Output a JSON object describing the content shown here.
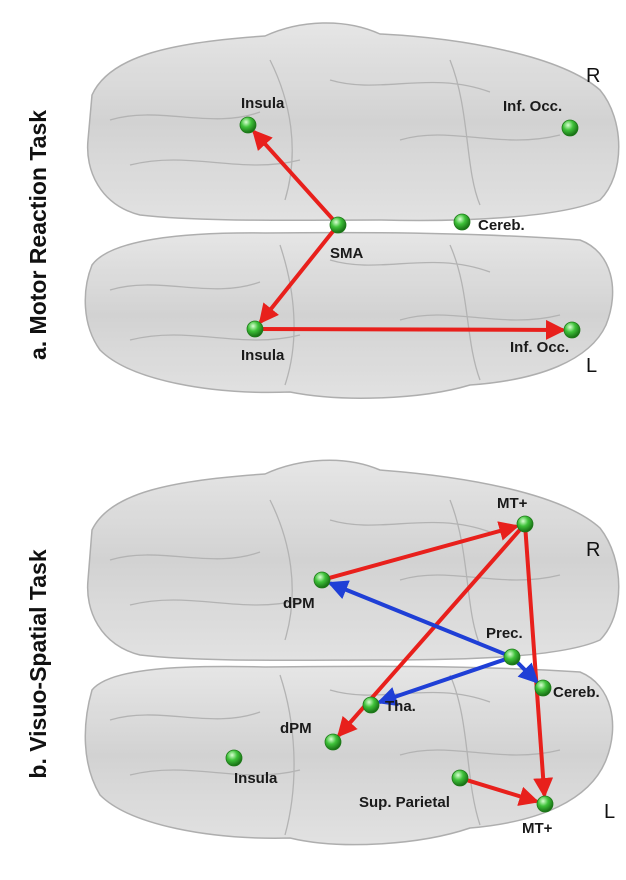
{
  "panels": [
    {
      "title": "a. Motor Reaction Task",
      "right_label": "R",
      "left_label": "L",
      "nodes": [
        {
          "id": "a_insula_r",
          "label": "Insula"
        },
        {
          "id": "a_infocc_r",
          "label": "Inf. Occ."
        },
        {
          "id": "a_sma",
          "label": "SMA"
        },
        {
          "id": "a_cereb",
          "label": "Cereb."
        },
        {
          "id": "a_insula_l",
          "label": "Insula"
        },
        {
          "id": "a_infocc_l",
          "label": "Inf. Occ."
        }
      ],
      "edges": [
        {
          "from": "a_sma",
          "to": "a_insula_r",
          "color": "#e8201c"
        },
        {
          "from": "a_sma",
          "to": "a_insula_l",
          "color": "#e8201c"
        },
        {
          "from": "a_insula_l",
          "to": "a_infocc_l",
          "color": "#e8201c"
        }
      ]
    },
    {
      "title": "b. Visuo-Spatial Task",
      "right_label": "R",
      "left_label": "L",
      "nodes": [
        {
          "id": "b_mt_r",
          "label": "MT+"
        },
        {
          "id": "b_dpm_r",
          "label": "dPM"
        },
        {
          "id": "b_prec",
          "label": "Prec."
        },
        {
          "id": "b_cereb",
          "label": "Cereb."
        },
        {
          "id": "b_tha",
          "label": "Tha."
        },
        {
          "id": "b_dpm_l",
          "label": "dPM"
        },
        {
          "id": "b_insula",
          "label": "Insula"
        },
        {
          "id": "b_supparietal",
          "label": "Sup. Parietal"
        },
        {
          "id": "b_mt_l",
          "label": "MT+"
        }
      ],
      "edges": [
        {
          "from": "b_dpm_r",
          "to": "b_mt_r",
          "color": "#e8201c"
        },
        {
          "from": "b_mt_r",
          "to": "b_dpm_l",
          "color": "#e8201c"
        },
        {
          "from": "b_mt_r",
          "to": "b_mt_l",
          "color": "#e8201c"
        },
        {
          "from": "b_supparietal",
          "to": "b_mt_l",
          "color": "#e8201c"
        },
        {
          "from": "b_prec",
          "to": "b_dpm_r",
          "color": "#1f3fd6"
        },
        {
          "from": "b_prec",
          "to": "b_tha",
          "color": "#1f3fd6"
        },
        {
          "from": "b_prec",
          "to": "b_cereb",
          "color": "#1f3fd6"
        }
      ]
    }
  ],
  "colors": {
    "node": "#3fc23a",
    "brain_fill": "#d4d4d4",
    "brain_stroke": "#a8a8a8"
  }
}
